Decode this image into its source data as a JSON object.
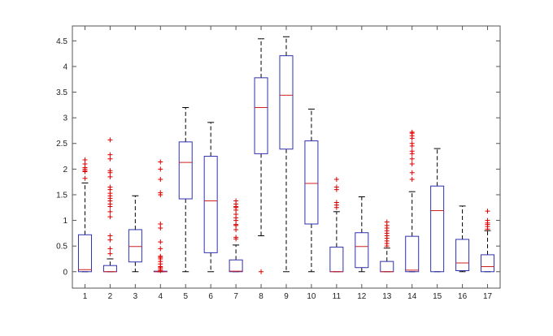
{
  "chart_data": {
    "type": "boxplot",
    "title": "",
    "xlabel": "",
    "ylabel": "",
    "ylim": [
      -0.32,
      4.79
    ],
    "xlim": [
      0.5,
      17.5
    ],
    "yticks": [
      "0",
      "0.5",
      "1",
      "1.5",
      "2",
      "2.5",
      "3",
      "3.5",
      "4",
      "4.5"
    ],
    "categories": [
      "1",
      "2",
      "3",
      "4",
      "5",
      "6",
      "7",
      "8",
      "9",
      "10",
      "11",
      "12",
      "13",
      "14",
      "15",
      "16",
      "17"
    ],
    "grid": false,
    "colors": {
      "box": "#3030b0",
      "median": "#d02020",
      "whisker": "#000000",
      "outlier": "#e00000",
      "axes": "#555555"
    },
    "boxes": [
      {
        "q1": 0,
        "median": 0.04,
        "q3": 0.72,
        "lw": 0,
        "uw": 1.73,
        "outliers": [
          1.82,
          1.95,
          1.97,
          2.0,
          2.03,
          2.1,
          2.18
        ]
      },
      {
        "q1": 0,
        "median": 0,
        "q3": 0.12,
        "lw": 0,
        "uw": 0.25,
        "outliers": [
          0.35,
          0.45,
          0.62,
          0.7,
          1.07,
          1.17,
          1.27,
          1.32,
          1.38,
          1.43,
          1.48,
          1.53,
          1.6,
          1.65,
          1.85,
          1.93,
          1.97,
          2.2,
          2.28,
          2.57
        ]
      },
      {
        "q1": 0.19,
        "median": 0.49,
        "q3": 0.82,
        "lw": 0,
        "uw": 1.48,
        "outliers": []
      },
      {
        "q1": 0,
        "median": 0,
        "q3": 0.01,
        "lw": 0,
        "uw": 0,
        "outliers": [
          0.02,
          0.05,
          0.08,
          0.1,
          0.15,
          0.2,
          0.25,
          0.28,
          0.3,
          0.45,
          0.58,
          0.85,
          0.93,
          1.5,
          1.54,
          1.8,
          2.0,
          2.14
        ]
      },
      {
        "q1": 1.42,
        "median": 2.13,
        "q3": 2.53,
        "lw": 0,
        "uw": 3.2,
        "outliers": []
      },
      {
        "q1": 0.37,
        "median": 1.38,
        "q3": 2.25,
        "lw": 0,
        "uw": 2.91,
        "outliers": []
      },
      {
        "q1": 0,
        "median": 0.01,
        "q3": 0.23,
        "lw": 0,
        "uw": 0.52,
        "outliers": [
          0.64,
          0.67,
          0.82,
          0.9,
          0.92,
          1.0,
          1.05,
          1.12,
          1.2,
          1.25,
          1.27,
          1.32,
          1.38
        ]
      },
      {
        "q1": 2.3,
        "median": 3.2,
        "q3": 3.78,
        "lw": 0.7,
        "uw": 4.54,
        "outliers": [
          0
        ]
      },
      {
        "q1": 2.39,
        "median": 3.44,
        "q3": 4.21,
        "lw": 0,
        "uw": 4.58,
        "outliers": []
      },
      {
        "q1": 0.93,
        "median": 1.72,
        "q3": 2.55,
        "lw": 0,
        "uw": 3.17,
        "outliers": []
      },
      {
        "q1": 0,
        "median": 0,
        "q3": 0.48,
        "lw": 0,
        "uw": 1.17,
        "outliers": [
          1.25,
          1.3,
          1.35,
          1.6,
          1.65,
          1.8
        ]
      },
      {
        "q1": 0.08,
        "median": 0.49,
        "q3": 0.76,
        "lw": 0,
        "uw": 1.46,
        "outliers": []
      },
      {
        "q1": 0,
        "median": 0,
        "q3": 0.2,
        "lw": 0,
        "uw": 0.46,
        "outliers": [
          0.5,
          0.55,
          0.6,
          0.65,
          0.7,
          0.75,
          0.8,
          0.85,
          0.9,
          0.97
        ]
      },
      {
        "q1": 0,
        "median": 0.03,
        "q3": 0.69,
        "lw": 0,
        "uw": 1.56,
        "outliers": [
          1.8,
          1.93,
          2.1,
          2.2,
          2.3,
          2.35,
          2.45,
          2.5,
          2.6,
          2.65,
          2.7,
          2.72
        ]
      },
      {
        "q1": 0,
        "median": 1.19,
        "q3": 1.67,
        "lw": 0,
        "uw": 2.4,
        "outliers": []
      },
      {
        "q1": 0.02,
        "median": 0.17,
        "q3": 0.63,
        "lw": 0,
        "uw": 1.28,
        "outliers": []
      },
      {
        "q1": 0,
        "median": 0.1,
        "q3": 0.33,
        "lw": 0,
        "uw": 0.8,
        "outliers": [
          0.83,
          0.88,
          0.92,
          0.95,
          1.0,
          1.18
        ]
      }
    ]
  }
}
